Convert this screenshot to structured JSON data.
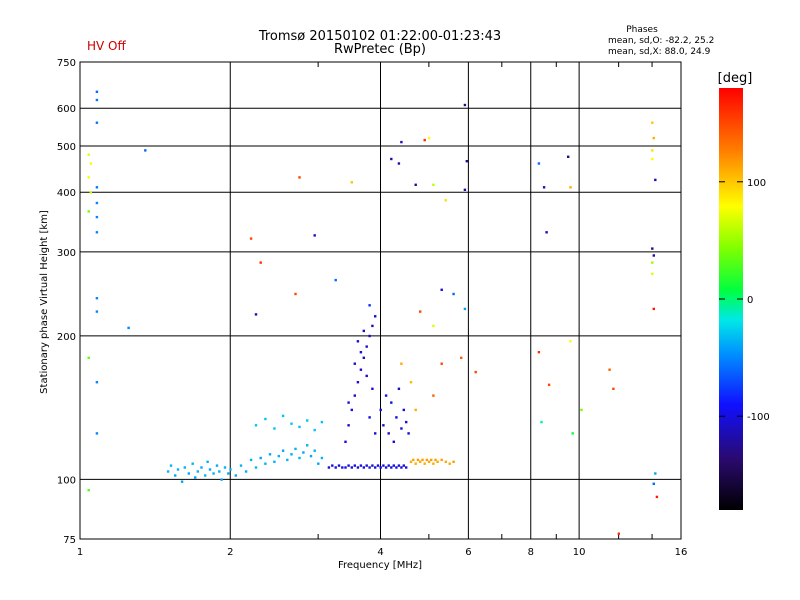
{
  "status": {
    "text": "HV Off",
    "color": "#cc0000"
  },
  "header": {
    "title": "Tromsø 20150102 01:22:00-01:23:43",
    "subtitle": "RwPretec (Bp)",
    "stats_title": "Phases",
    "stats_line1": "mean, sd,O:  -82.2, 25.2",
    "stats_line2": "mean, sd,X:  88.0, 24.9"
  },
  "colorbar": {
    "label": "[deg]",
    "range": [
      -180,
      180
    ],
    "ticks": [
      {
        "value": 100,
        "label": "100"
      },
      {
        "value": 0,
        "label": "0"
      },
      {
        "value": -100,
        "label": "-100"
      }
    ]
  },
  "chart_data": {
    "type": "scatter",
    "title": "Tromsø 20150102 01:22:00-01:23:43",
    "subtitle": "RwPretec (Bp)",
    "xlabel": "Frequency [MHz]",
    "ylabel": "Stationary phase Virtual Height [km]",
    "x_scale": "log",
    "y_scale": "log",
    "xlim": [
      1,
      16
    ],
    "ylim": [
      75,
      750
    ],
    "grid": true,
    "x_ticks": [
      1,
      2,
      4,
      6,
      8,
      10,
      16
    ],
    "y_ticks": [
      75,
      100,
      200,
      300,
      400,
      500,
      600,
      750
    ],
    "color_variable": "phase [deg]",
    "points": [
      [
        1.5,
        104,
        -35
      ],
      [
        1.52,
        107,
        -35
      ],
      [
        1.55,
        102,
        -40
      ],
      [
        1.57,
        105,
        -35
      ],
      [
        1.6,
        99,
        -40
      ],
      [
        1.62,
        106,
        -35
      ],
      [
        1.65,
        103,
        -38
      ],
      [
        1.68,
        108,
        -35
      ],
      [
        1.7,
        101,
        -40
      ],
      [
        1.72,
        104,
        -35
      ],
      [
        1.75,
        106,
        -38
      ],
      [
        1.78,
        102,
        -35
      ],
      [
        1.8,
        109,
        -35
      ],
      [
        1.82,
        105,
        -40
      ],
      [
        1.85,
        103,
        -35
      ],
      [
        1.88,
        107,
        -38
      ],
      [
        1.9,
        104,
        -35
      ],
      [
        1.92,
        100,
        -40
      ],
      [
        1.95,
        106,
        -35
      ],
      [
        1.98,
        103,
        -38
      ],
      [
        2.0,
        105,
        -35
      ],
      [
        2.05,
        102,
        -40
      ],
      [
        2.1,
        107,
        -35
      ],
      [
        2.15,
        104,
        -38
      ],
      [
        2.2,
        110,
        -35
      ],
      [
        2.25,
        106,
        -35
      ],
      [
        2.3,
        111,
        -40
      ],
      [
        2.35,
        108,
        -35
      ],
      [
        2.4,
        113,
        -38
      ],
      [
        2.45,
        109,
        -35
      ],
      [
        2.5,
        112,
        -35
      ],
      [
        2.55,
        115,
        -40
      ],
      [
        2.6,
        110,
        -35
      ],
      [
        2.65,
        113,
        -38
      ],
      [
        2.7,
        116,
        -35
      ],
      [
        2.75,
        111,
        -35
      ],
      [
        2.8,
        114,
        -40
      ],
      [
        2.85,
        118,
        -35
      ],
      [
        2.9,
        112,
        -38
      ],
      [
        2.95,
        115,
        -35
      ],
      [
        3.0,
        108,
        -40
      ],
      [
        3.05,
        111,
        -35
      ],
      [
        2.25,
        130,
        -30
      ],
      [
        2.35,
        134,
        -30
      ],
      [
        2.45,
        128,
        -30
      ],
      [
        2.55,
        136,
        -30
      ],
      [
        2.65,
        131,
        -30
      ],
      [
        2.75,
        129,
        -30
      ],
      [
        2.85,
        133,
        -30
      ],
      [
        2.95,
        127,
        -30
      ],
      [
        3.05,
        132,
        -30
      ],
      [
        3.15,
        106,
        -100
      ],
      [
        3.2,
        107,
        -100
      ],
      [
        3.25,
        106,
        -100
      ],
      [
        3.3,
        107,
        -100
      ],
      [
        3.35,
        106,
        -100
      ],
      [
        3.4,
        106,
        -100
      ],
      [
        3.45,
        107,
        -100
      ],
      [
        3.5,
        106,
        -100
      ],
      [
        3.55,
        107,
        -100
      ],
      [
        3.6,
        106,
        -100
      ],
      [
        3.65,
        107,
        -100
      ],
      [
        3.7,
        106,
        -100
      ],
      [
        3.75,
        107,
        -100
      ],
      [
        3.8,
        106,
        -100
      ],
      [
        3.85,
        107,
        -100
      ],
      [
        3.9,
        106,
        -100
      ],
      [
        3.95,
        107,
        -100
      ],
      [
        4.0,
        106,
        -100
      ],
      [
        4.05,
        107,
        -100
      ],
      [
        4.1,
        106,
        -100
      ],
      [
        4.15,
        107,
        -100
      ],
      [
        4.2,
        106,
        -100
      ],
      [
        4.25,
        107,
        -100
      ],
      [
        4.3,
        106,
        -100
      ],
      [
        4.35,
        107,
        -100
      ],
      [
        4.4,
        106,
        -100
      ],
      [
        4.45,
        107,
        -100
      ],
      [
        4.5,
        106,
        -100
      ],
      [
        3.4,
        120,
        -100
      ],
      [
        3.45,
        130,
        -105
      ],
      [
        3.5,
        140,
        -100
      ],
      [
        3.55,
        150,
        -110
      ],
      [
        3.6,
        160,
        -100
      ],
      [
        3.65,
        170,
        -105
      ],
      [
        3.7,
        180,
        -110
      ],
      [
        3.75,
        190,
        -100
      ],
      [
        3.8,
        200,
        -110
      ],
      [
        3.85,
        210,
        -115
      ],
      [
        3.9,
        220,
        -110
      ],
      [
        3.45,
        145,
        -100
      ],
      [
        3.55,
        175,
        -105
      ],
      [
        3.65,
        185,
        -100
      ],
      [
        3.75,
        165,
        -110
      ],
      [
        3.85,
        155,
        -100
      ],
      [
        3.6,
        195,
        -105
      ],
      [
        3.7,
        205,
        -110
      ],
      [
        3.8,
        135,
        -100
      ],
      [
        3.9,
        125,
        -105
      ],
      [
        4.0,
        140,
        -100
      ],
      [
        4.05,
        130,
        -105
      ],
      [
        4.1,
        150,
        -100
      ],
      [
        4.15,
        125,
        -110
      ],
      [
        4.2,
        145,
        -100
      ],
      [
        4.25,
        120,
        -105
      ],
      [
        4.3,
        135,
        -100
      ],
      [
        4.35,
        155,
        -110
      ],
      [
        4.4,
        128,
        -100
      ],
      [
        4.45,
        140,
        -105
      ],
      [
        4.5,
        132,
        -100
      ],
      [
        4.55,
        125,
        -105
      ],
      [
        4.6,
        109,
        110
      ],
      [
        4.65,
        110,
        115
      ],
      [
        4.7,
        108,
        110
      ],
      [
        4.75,
        110,
        115
      ],
      [
        4.8,
        109,
        110
      ],
      [
        4.85,
        110,
        115
      ],
      [
        4.9,
        108,
        110
      ],
      [
        4.95,
        110,
        115
      ],
      [
        5.0,
        109,
        110
      ],
      [
        5.05,
        110,
        115
      ],
      [
        5.1,
        108,
        110
      ],
      [
        5.15,
        110,
        115
      ],
      [
        5.2,
        109,
        110
      ],
      [
        5.3,
        110,
        115
      ],
      [
        5.4,
        109,
        110
      ],
      [
        5.5,
        108,
        110
      ],
      [
        5.6,
        109,
        115
      ],
      [
        4.4,
        175,
        110
      ],
      [
        4.6,
        160,
        105
      ],
      [
        4.7,
        140,
        110
      ],
      [
        5.1,
        150,
        140
      ],
      [
        5.3,
        175,
        150
      ],
      [
        1.08,
        650,
        -60
      ],
      [
        1.08,
        625,
        -55
      ],
      [
        1.08,
        560,
        -55
      ],
      [
        1.35,
        490,
        -60
      ],
      [
        1.08,
        410,
        -55
      ],
      [
        1.08,
        380,
        -50
      ],
      [
        1.08,
        355,
        -50
      ],
      [
        1.08,
        330,
        -50
      ],
      [
        1.08,
        240,
        -50
      ],
      [
        1.08,
        225,
        -50
      ],
      [
        1.25,
        208,
        -50
      ],
      [
        1.08,
        160,
        -50
      ],
      [
        1.08,
        125,
        -50
      ],
      [
        1.04,
        480,
        70
      ],
      [
        1.05,
        460,
        80
      ],
      [
        1.04,
        430,
        75
      ],
      [
        1.05,
        400,
        60
      ],
      [
        1.04,
        365,
        40
      ],
      [
        1.04,
        180,
        35
      ],
      [
        1.04,
        95,
        30
      ],
      [
        2.75,
        430,
        150
      ],
      [
        2.2,
        320,
        150
      ],
      [
        2.3,
        285,
        160
      ],
      [
        2.7,
        245,
        150
      ],
      [
        3.5,
        420,
        100
      ],
      [
        2.95,
        325,
        -110
      ],
      [
        2.25,
        222,
        -110
      ],
      [
        3.25,
        262,
        -60
      ],
      [
        3.8,
        232,
        -80
      ],
      [
        4.2,
        470,
        -120
      ],
      [
        4.35,
        460,
        -120
      ],
      [
        4.4,
        510,
        -110
      ],
      [
        4.7,
        415,
        -120
      ],
      [
        4.9,
        515,
        160
      ],
      [
        5.0,
        520,
        80
      ],
      [
        5.9,
        610,
        -130
      ],
      [
        5.95,
        465,
        -130
      ],
      [
        5.9,
        405,
        -120
      ],
      [
        5.1,
        415,
        60
      ],
      [
        5.4,
        385,
        90
      ],
      [
        5.3,
        250,
        -100
      ],
      [
        5.6,
        245,
        -60
      ],
      [
        5.9,
        228,
        -40
      ],
      [
        5.1,
        210,
        70
      ],
      [
        4.8,
        225,
        150
      ],
      [
        6.2,
        168,
        150
      ],
      [
        5.8,
        180,
        140
      ],
      [
        8.3,
        460,
        -60
      ],
      [
        8.5,
        410,
        -110
      ],
      [
        8.6,
        330,
        -115
      ],
      [
        8.3,
        185,
        160
      ],
      [
        8.4,
        132,
        -10
      ],
      [
        8.7,
        158,
        150
      ],
      [
        9.5,
        475,
        -130
      ],
      [
        9.6,
        410,
        110
      ],
      [
        9.6,
        195,
        80
      ],
      [
        10.1,
        140,
        40
      ],
      [
        9.7,
        125,
        10
      ],
      [
        11.5,
        170,
        140
      ],
      [
        11.7,
        155,
        150
      ],
      [
        12.0,
        77,
        160
      ],
      [
        14.0,
        560,
        100
      ],
      [
        14.1,
        520,
        110
      ],
      [
        14.0,
        490,
        90
      ],
      [
        14.0,
        470,
        80
      ],
      [
        14.2,
        425,
        -115
      ],
      [
        14.0,
        305,
        -130
      ],
      [
        14.1,
        295,
        -120
      ],
      [
        14.0,
        285,
        50
      ],
      [
        14.0,
        270,
        70
      ],
      [
        14.1,
        228,
        170
      ],
      [
        14.2,
        103,
        -40
      ],
      [
        14.1,
        98,
        -60
      ],
      [
        14.3,
        92,
        170
      ]
    ]
  }
}
